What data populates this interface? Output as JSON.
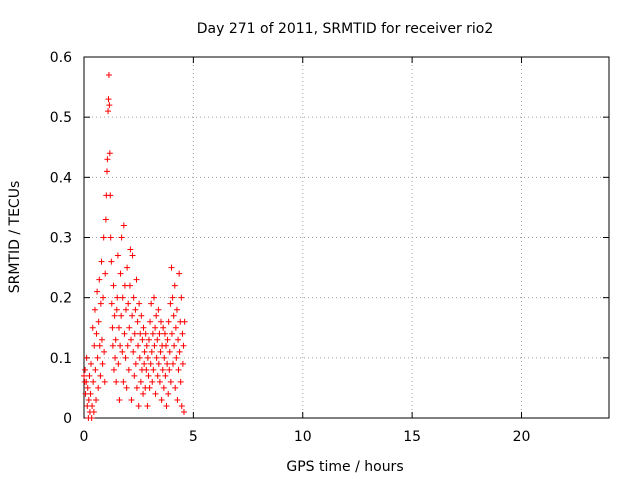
{
  "chart_data": {
    "type": "scatter",
    "title": "Day 271 of 2011, SRMTID for receiver rio2",
    "xlabel": "GPS time / hours",
    "ylabel": "SRMTID / TECUs",
    "xlim": [
      0,
      24
    ],
    "ylim": [
      0,
      0.6
    ],
    "x_ticks": [
      0,
      5,
      10,
      15,
      20
    ],
    "x_tick_labels": [
      "0",
      "5",
      "10",
      "15",
      "20"
    ],
    "y_ticks": [
      0,
      0.1,
      0.2,
      0.3,
      0.4,
      0.5,
      0.6
    ],
    "y_tick_labels": [
      "0",
      "0.1",
      "0.2",
      "0.3",
      "0.4",
      "0.5",
      "0.6"
    ],
    "grid": true,
    "marker": "plus",
    "color": "#ff0000",
    "series": [
      {
        "points": [
          [
            0.0,
            0.07
          ],
          [
            0.03,
            0.06
          ],
          [
            0.05,
            0.08
          ],
          [
            0.07,
            0.04
          ],
          [
            0.1,
            0.06
          ],
          [
            0.12,
            0.1
          ],
          [
            0.15,
            0.02
          ],
          [
            0.17,
            0.05
          ],
          [
            0.2,
            0.0
          ],
          [
            0.22,
            0.03
          ],
          [
            0.25,
            0.07
          ],
          [
            0.27,
            0.01
          ],
          [
            0.3,
            0.04
          ],
          [
            0.32,
            0.09
          ],
          [
            0.35,
            0.0
          ],
          [
            0.37,
            0.02
          ],
          [
            0.4,
            0.15
          ],
          [
            0.42,
            0.06
          ],
          [
            0.45,
            0.01
          ],
          [
            0.47,
            0.12
          ],
          [
            0.5,
            0.18
          ],
          [
            0.52,
            0.08
          ],
          [
            0.55,
            0.03
          ],
          [
            0.57,
            0.14
          ],
          [
            0.6,
            0.21
          ],
          [
            0.62,
            0.1
          ],
          [
            0.65,
            0.05
          ],
          [
            0.67,
            0.16
          ],
          [
            0.7,
            0.23
          ],
          [
            0.72,
            0.12
          ],
          [
            0.75,
            0.07
          ],
          [
            0.77,
            0.19
          ],
          [
            0.8,
            0.26
          ],
          [
            0.82,
            0.13
          ],
          [
            0.85,
            0.09
          ],
          [
            0.87,
            0.2
          ],
          [
            0.9,
            0.3
          ],
          [
            0.92,
            0.11
          ],
          [
            0.95,
            0.06
          ],
          [
            0.97,
            0.24
          ],
          [
            1.0,
            0.33
          ],
          [
            1.02,
            0.37
          ],
          [
            1.05,
            0.41
          ],
          [
            1.07,
            0.43
          ],
          [
            1.1,
            0.51
          ],
          [
            1.12,
            0.53
          ],
          [
            1.14,
            0.57
          ],
          [
            1.16,
            0.52
          ],
          [
            1.18,
            0.44
          ],
          [
            1.2,
            0.37
          ],
          [
            1.22,
            0.3
          ],
          [
            1.25,
            0.26
          ],
          [
            1.27,
            0.19
          ],
          [
            1.3,
            0.15
          ],
          [
            1.32,
            0.12
          ],
          [
            1.35,
            0.22
          ],
          [
            1.37,
            0.08
          ],
          [
            1.4,
            0.17
          ],
          [
            1.42,
            0.1
          ],
          [
            1.45,
            0.13
          ],
          [
            1.47,
            0.06
          ],
          [
            1.5,
            0.18
          ],
          [
            1.52,
            0.2
          ],
          [
            1.55,
            0.27
          ],
          [
            1.57,
            0.09
          ],
          [
            1.6,
            0.15
          ],
          [
            1.62,
            0.03
          ],
          [
            1.65,
            0.12
          ],
          [
            1.67,
            0.24
          ],
          [
            1.7,
            0.17
          ],
          [
            1.72,
            0.3
          ],
          [
            1.75,
            0.11
          ],
          [
            1.77,
            0.2
          ],
          [
            1.8,
            0.06
          ],
          [
            1.82,
            0.32
          ],
          [
            1.85,
            0.14
          ],
          [
            1.87,
            0.22
          ],
          [
            1.9,
            0.1
          ],
          [
            1.92,
            0.18
          ],
          [
            1.95,
            0.05
          ],
          [
            1.97,
            0.25
          ],
          [
            2.0,
            0.12
          ],
          [
            2.02,
            0.19
          ],
          [
            2.05,
            0.08
          ],
          [
            2.07,
            0.15
          ],
          [
            2.1,
            0.22
          ],
          [
            2.12,
            0.28
          ],
          [
            2.15,
            0.13
          ],
          [
            2.17,
            0.03
          ],
          [
            2.2,
            0.17
          ],
          [
            2.22,
            0.27
          ],
          [
            2.25,
            0.11
          ],
          [
            2.27,
            0.2
          ],
          [
            2.3,
            0.07
          ],
          [
            2.32,
            0.14
          ],
          [
            2.35,
            0.18
          ],
          [
            2.37,
            0.09
          ],
          [
            2.4,
            0.23
          ],
          [
            2.42,
            0.05
          ],
          [
            2.45,
            0.16
          ],
          [
            2.47,
            0.12
          ],
          [
            2.5,
            0.02
          ],
          [
            2.52,
            0.19
          ],
          [
            2.55,
            0.1
          ],
          [
            2.57,
            0.14
          ],
          [
            2.6,
            0.06
          ],
          [
            2.62,
            0.17
          ],
          [
            2.65,
            0.08
          ],
          [
            2.67,
            0.13
          ],
          [
            2.7,
            0.04
          ],
          [
            2.72,
            0.15
          ],
          [
            2.75,
            0.09
          ],
          [
            2.77,
            0.11
          ],
          [
            2.8,
            0.05
          ],
          [
            2.82,
            0.14
          ],
          [
            2.85,
            0.08
          ],
          [
            2.87,
            0.12
          ],
          [
            2.9,
            0.02
          ],
          [
            2.92,
            0.1
          ],
          [
            2.95,
            0.07
          ],
          [
            2.97,
            0.13
          ],
          [
            3.0,
            0.05
          ],
          [
            3.02,
            0.16
          ],
          [
            3.05,
            0.09
          ],
          [
            3.07,
            0.19
          ],
          [
            3.1,
            0.11
          ],
          [
            3.12,
            0.06
          ],
          [
            3.15,
            0.14
          ],
          [
            3.17,
            0.08
          ],
          [
            3.2,
            0.2
          ],
          [
            3.22,
            0.12
          ],
          [
            3.25,
            0.15
          ],
          [
            3.27,
            0.04
          ],
          [
            3.3,
            0.17
          ],
          [
            3.32,
            0.1
          ],
          [
            3.35,
            0.13
          ],
          [
            3.37,
            0.07
          ],
          [
            3.4,
            0.18
          ],
          [
            3.42,
            0.09
          ],
          [
            3.45,
            0.14
          ],
          [
            3.47,
            0.06
          ],
          [
            3.5,
            0.11
          ],
          [
            3.52,
            0.16
          ],
          [
            3.55,
            0.03
          ],
          [
            3.57,
            0.12
          ],
          [
            3.6,
            0.08
          ],
          [
            3.62,
            0.15
          ],
          [
            3.65,
            0.05
          ],
          [
            3.67,
            0.1
          ],
          [
            3.7,
            0.14
          ],
          [
            3.72,
            0.07
          ],
          [
            3.75,
            0.12
          ],
          [
            3.77,
            0.02
          ],
          [
            3.8,
            0.09
          ],
          [
            3.82,
            0.13
          ],
          [
            3.85,
            0.04
          ],
          [
            3.87,
            0.16
          ],
          [
            3.9,
            0.08
          ],
          [
            3.92,
            0.11
          ],
          [
            3.95,
            0.19
          ],
          [
            3.97,
            0.06
          ],
          [
            4.0,
            0.25
          ],
          [
            4.02,
            0.14
          ],
          [
            4.05,
            0.2
          ],
          [
            4.07,
            0.09
          ],
          [
            4.1,
            0.17
          ],
          [
            4.12,
            0.12
          ],
          [
            4.15,
            0.22
          ],
          [
            4.17,
            0.05
          ],
          [
            4.2,
            0.15
          ],
          [
            4.22,
            0.1
          ],
          [
            4.25,
            0.18
          ],
          [
            4.27,
            0.03
          ],
          [
            4.3,
            0.13
          ],
          [
            4.32,
            0.08
          ],
          [
            4.35,
            0.24
          ],
          [
            4.37,
            0.11
          ],
          [
            4.4,
            0.16
          ],
          [
            4.42,
            0.06
          ],
          [
            4.45,
            0.2
          ],
          [
            4.47,
            0.02
          ],
          [
            4.5,
            0.14
          ],
          [
            4.52,
            0.09
          ],
          [
            4.55,
            0.12
          ],
          [
            4.57,
            0.01
          ],
          [
            4.6,
            0.16
          ]
        ]
      }
    ]
  }
}
